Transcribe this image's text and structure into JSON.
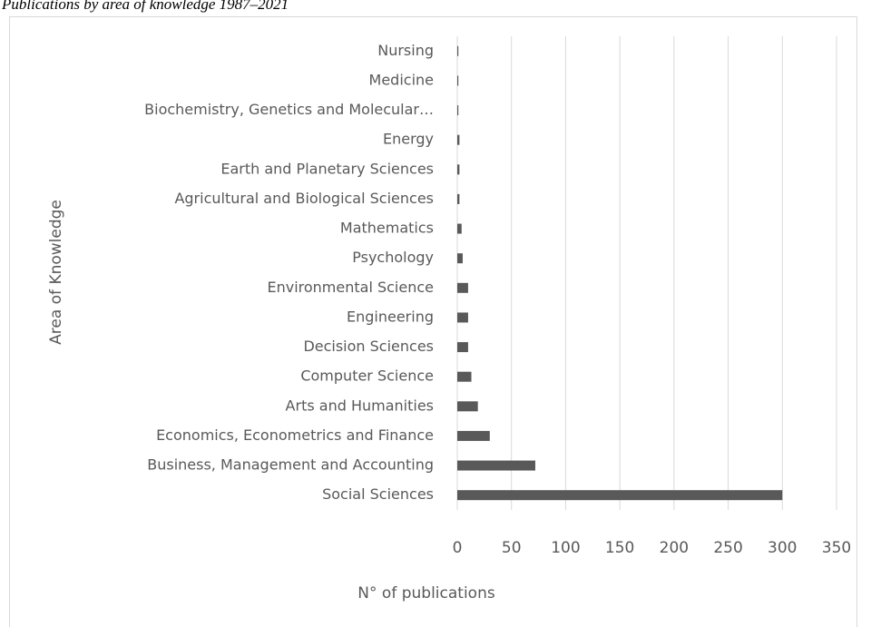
{
  "chart_data": {
    "type": "barh",
    "title": "Publications by area of knowledge 1987–2021",
    "x_label": "N° of publications",
    "y_label": "Area of Knowledge",
    "categories": [
      "Nursing",
      "Medicine",
      "Biochemistry, Genetics and Molecular…",
      "Energy",
      "Earth and Planetary Sciences",
      "Agricultural and Biological Sciences",
      "Mathematics",
      "Psychology",
      "Environmental Science",
      "Engineering",
      "Decision Sciences",
      "Computer Science",
      "Arts and Humanities",
      "Economics, Econometrics and Finance",
      "Business, Management and Accounting",
      "Social Sciences"
    ],
    "values": [
      1,
      1,
      1,
      2,
      2,
      2,
      4,
      5,
      10,
      10,
      10,
      13,
      19,
      30,
      72,
      300
    ],
    "color": "#595959",
    "xlim": [
      0,
      350
    ],
    "xticks": [
      0,
      50,
      100,
      150,
      200,
      250,
      300,
      350
    ],
    "grid": true
  }
}
